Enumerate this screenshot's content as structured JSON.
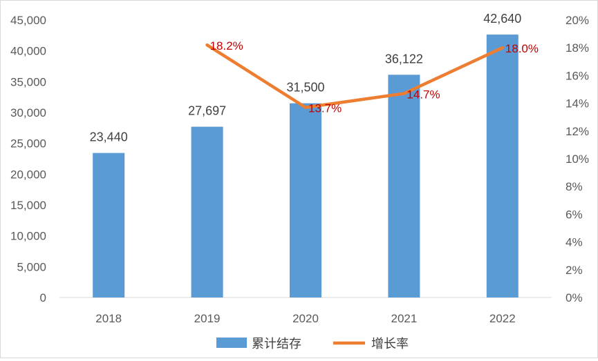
{
  "chart_data": {
    "type": "bar",
    "categories": [
      "2018",
      "2019",
      "2020",
      "2021",
      "2022"
    ],
    "series": [
      {
        "name": "累计结存",
        "kind": "bar",
        "axis": "left",
        "color": "#5b9bd5",
        "values": [
          23440,
          27697,
          31500,
          36122,
          42640
        ],
        "labels": [
          "23,440",
          "27,697",
          "31,500",
          "36,122",
          "42,640"
        ]
      },
      {
        "name": "增长率",
        "kind": "line",
        "axis": "right",
        "color": "#ed7d31",
        "values": [
          null,
          18.2,
          13.7,
          14.7,
          18.0
        ],
        "labels": [
          "",
          "18.2%",
          "13.7%",
          "14.7%",
          "18.0%"
        ],
        "label_color": "#c00000"
      }
    ],
    "y_left": {
      "ylim": [
        0,
        45000
      ],
      "ticks": [
        "0",
        "5,000",
        "10,000",
        "15,000",
        "20,000",
        "25,000",
        "30,000",
        "35,000",
        "40,000",
        "45,000"
      ]
    },
    "y_right": {
      "ylim": [
        0,
        20
      ],
      "ticks": [
        "0%",
        "2%",
        "4%",
        "6%",
        "8%",
        "10%",
        "12%",
        "14%",
        "16%",
        "18%",
        "20%"
      ]
    },
    "grid": false,
    "legend": "bottom",
    "title": "",
    "xlabel": "",
    "ylabel": ""
  }
}
